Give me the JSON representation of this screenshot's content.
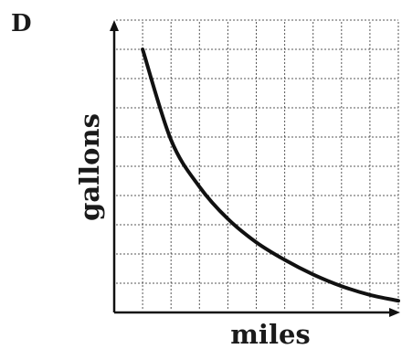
{
  "panel_label": "D",
  "chart_data": {
    "type": "line",
    "title": "",
    "xlabel": "miles",
    "ylabel": "gallons",
    "xlim": [
      0,
      10
    ],
    "ylim": [
      0,
      10
    ],
    "grid": true,
    "series": [
      {
        "x": [
          1,
          2,
          3,
          4,
          5,
          6,
          7,
          8,
          9,
          10
        ],
        "y": [
          9.0,
          5.9,
          4.3,
          3.2,
          2.4,
          1.8,
          1.3,
          0.9,
          0.6,
          0.4
        ]
      }
    ],
    "colors": {
      "curve": "#111111",
      "grid": "#3a3a3a"
    }
  }
}
